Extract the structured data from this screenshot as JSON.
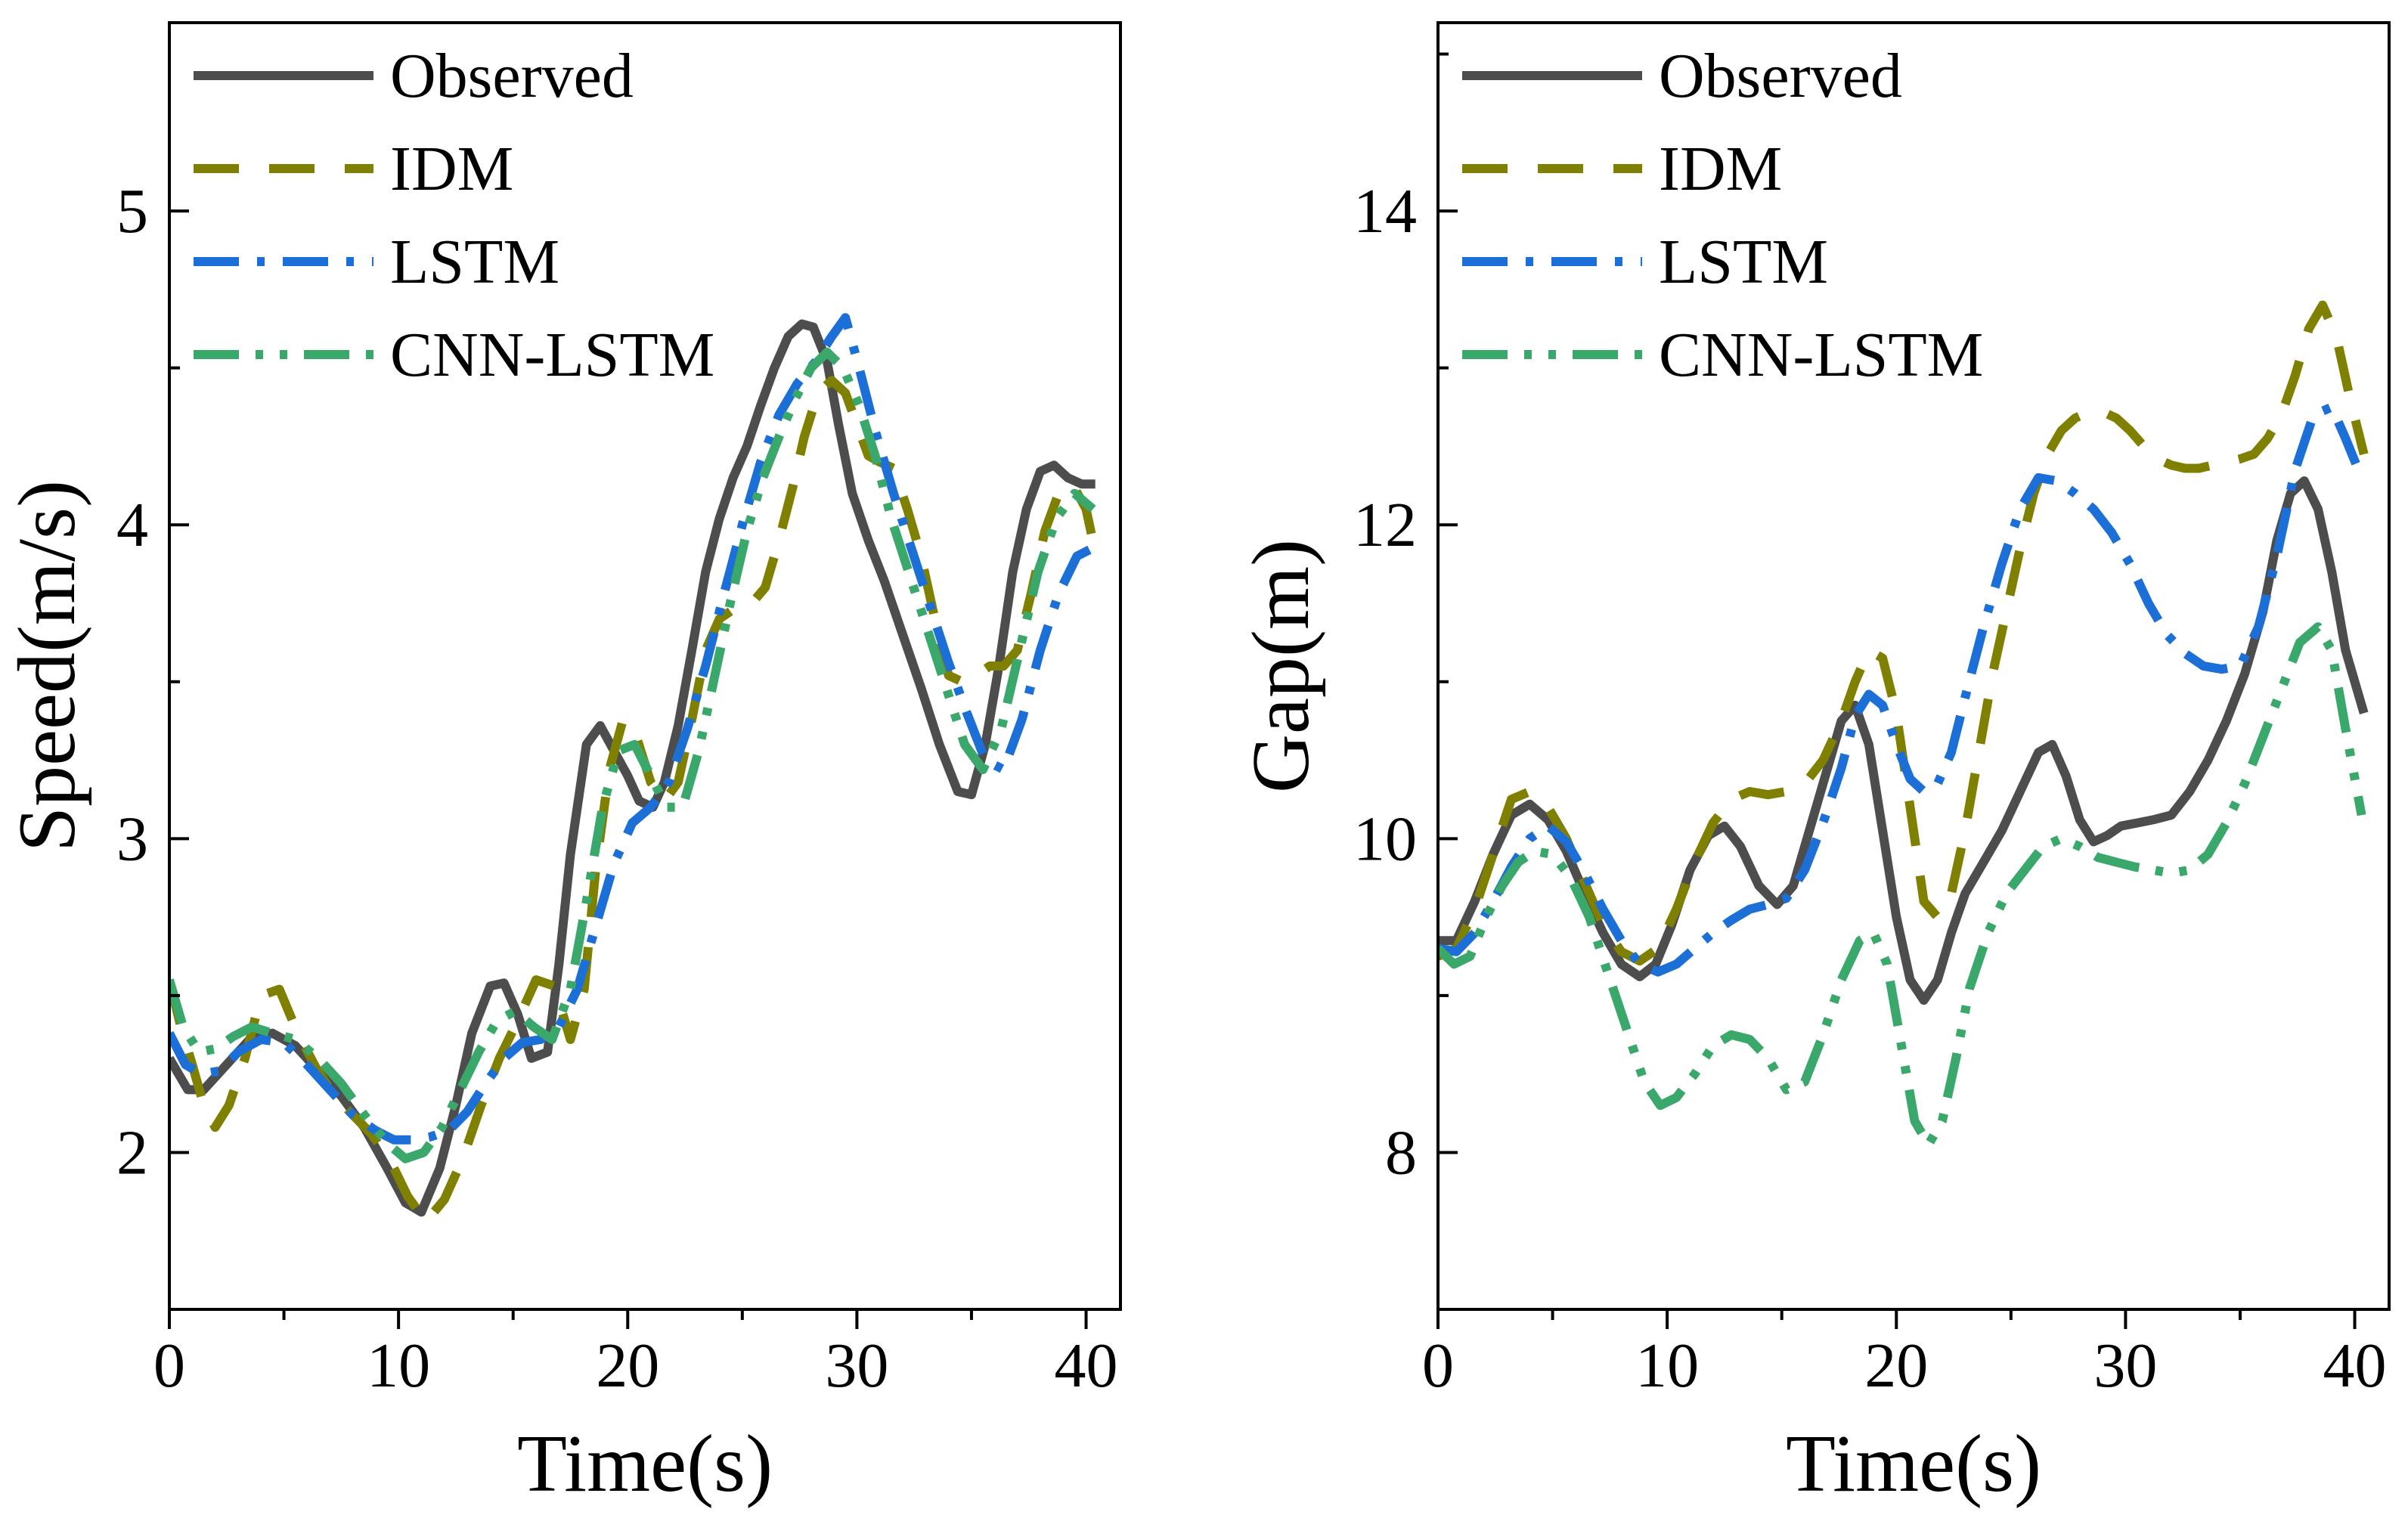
{
  "chart_data": [
    {
      "type": "line",
      "xlabel": "Time(s)",
      "ylabel": "Speed(m/s)",
      "xlim": [
        0,
        41.5
      ],
      "ylim": [
        1.5,
        5.6
      ],
      "xticks": [
        0,
        10,
        20,
        30,
        40
      ],
      "xminor": [
        5,
        15,
        25,
        35
      ],
      "yticks": [
        2,
        3,
        4,
        5
      ],
      "yminor": [
        1.5,
        2.5,
        3.5,
        4.5
      ],
      "legend_position": "top-left",
      "series": [
        {
          "name": "Observed",
          "style": "solid",
          "color": "#4d4d4d",
          "x": [
            0,
            0.8,
            1.5,
            2.5,
            3.5,
            4.5,
            5.5,
            6.5,
            7.5,
            8.5,
            9.5,
            10.3,
            11,
            11.8,
            12.5,
            13.2,
            14,
            14.6,
            15.2,
            15.8,
            16.5,
            17,
            17.5,
            18.2,
            18.8,
            19.4,
            20,
            20.5,
            21.1,
            21.6,
            22.2,
            22.8,
            23.4,
            24,
            24.6,
            25.2,
            25.8,
            26.4,
            27,
            27.6,
            28.1,
            28.7,
            29.2,
            29.8,
            30.5,
            31.2,
            32,
            32.8,
            33.6,
            34.4,
            35,
            35.6,
            36.2,
            36.8,
            37.4,
            38,
            38.6,
            39.2,
            39.8,
            40.4
          ],
          "y": [
            2.3,
            2.2,
            2.2,
            2.28,
            2.36,
            2.38,
            2.34,
            2.26,
            2.18,
            2.08,
            1.95,
            1.84,
            1.81,
            1.95,
            2.15,
            2.38,
            2.53,
            2.54,
            2.44,
            2.3,
            2.32,
            2.6,
            2.95,
            3.3,
            3.36,
            3.28,
            3.2,
            3.12,
            3.1,
            3.18,
            3.36,
            3.6,
            3.85,
            4.02,
            4.15,
            4.25,
            4.38,
            4.5,
            4.6,
            4.64,
            4.63,
            4.52,
            4.32,
            4.1,
            3.95,
            3.82,
            3.65,
            3.48,
            3.3,
            3.15,
            3.14,
            3.3,
            3.55,
            3.85,
            4.05,
            4.17,
            4.19,
            4.15,
            4.13,
            4.13
          ]
        },
        {
          "name": "IDM",
          "style": "dashed",
          "color": "#808000",
          "x": [
            0,
            0.5,
            1,
            1.5,
            2,
            2.6,
            3.3,
            4,
            4.8,
            5.6,
            6.4,
            7.2,
            8,
            8.8,
            9.6,
            10.4,
            11.2,
            12,
            12.8,
            13.6,
            14.4,
            15.2,
            16,
            16.8,
            17.5,
            18.1,
            18.6,
            19.2,
            19.8,
            20.4,
            21,
            21.6,
            22.2,
            22.8,
            23.4,
            24,
            24.6,
            25.3,
            26,
            26.6,
            27.2,
            27.7,
            28.3,
            28.9,
            29.5,
            30,
            30.5,
            31,
            31.6,
            32.2,
            32.8,
            33.4,
            34,
            34.6,
            35.2,
            35.8,
            36.4,
            37,
            37.6,
            38.2,
            38.8,
            39.4,
            40,
            40.5
          ],
          "y": [
            2.55,
            2.4,
            2.28,
            2.15,
            2.08,
            2.15,
            2.3,
            2.5,
            2.52,
            2.38,
            2.27,
            2.18,
            2.12,
            2.06,
            1.98,
            1.86,
            1.78,
            1.85,
            1.98,
            2.15,
            2.3,
            2.42,
            2.55,
            2.53,
            2.36,
            2.52,
            2.9,
            3.22,
            3.38,
            3.32,
            3.18,
            3.12,
            3.18,
            3.38,
            3.6,
            3.7,
            3.73,
            3.74,
            3.8,
            3.95,
            4.12,
            4.28,
            4.42,
            4.46,
            4.42,
            4.32,
            4.22,
            4.2,
            4.18,
            4.05,
            3.9,
            3.7,
            3.52,
            3.5,
            3.52,
            3.55,
            3.55,
            3.6,
            3.78,
            3.98,
            4.1,
            4.13,
            4.05,
            3.88
          ]
        },
        {
          "name": "LSTM",
          "style": "dashdot",
          "color": "#1c6fd6",
          "x": [
            0,
            0.7,
            1.4,
            2.2,
            3,
            4,
            5,
            6,
            7,
            8,
            9,
            9.8,
            10.6,
            11.4,
            12.2,
            13,
            13.8,
            14.6,
            15.4,
            16.2,
            17,
            17.8,
            18.6,
            19.4,
            20.2,
            21,
            21.8,
            22.6,
            23.4,
            24.2,
            25,
            25.8,
            26.6,
            27.4,
            28.2,
            28.9,
            29.5,
            30.1,
            30.8,
            31.6,
            32.4,
            33.2,
            34,
            34.8,
            35.6,
            36.4,
            37.2,
            38,
            38.8,
            39.6,
            40.4
          ],
          "y": [
            2.38,
            2.28,
            2.25,
            2.26,
            2.32,
            2.36,
            2.35,
            2.28,
            2.2,
            2.12,
            2.07,
            2.04,
            2.04,
            2.05,
            2.07,
            2.13,
            2.22,
            2.3,
            2.35,
            2.36,
            2.4,
            2.52,
            2.72,
            2.92,
            3.05,
            3.1,
            3.18,
            3.35,
            3.55,
            3.78,
            4.0,
            4.2,
            4.35,
            4.45,
            4.52,
            4.6,
            4.66,
            4.5,
            4.3,
            4.1,
            3.92,
            3.74,
            3.56,
            3.4,
            3.25,
            3.22,
            3.38,
            3.6,
            3.78,
            3.9,
            3.93
          ]
        },
        {
          "name": "CNN-LSTM",
          "style": "dashdotdot",
          "color": "#3aa86a",
          "x": [
            0,
            0.6,
            1.3,
            2,
            2.8,
            3.6,
            4.5,
            5.5,
            6.5,
            7.5,
            8.5,
            9.5,
            10.3,
            11.1,
            11.9,
            12.7,
            13.5,
            14.3,
            15.1,
            15.9,
            16.7,
            17.5,
            18.2,
            18.9,
            19.6,
            20.3,
            21,
            21.7,
            22.4,
            23.1,
            23.8,
            24.5,
            25.2,
            25.9,
            26.6,
            27.3,
            28,
            28.7,
            29.4,
            30.1,
            30.8,
            31.5,
            32.3,
            33.1,
            33.9,
            34.7,
            35.5,
            36.3,
            37.1,
            37.9,
            38.7,
            39.5,
            40.3
          ],
          "y": [
            2.55,
            2.4,
            2.32,
            2.33,
            2.37,
            2.4,
            2.38,
            2.36,
            2.3,
            2.22,
            2.12,
            2.03,
            1.98,
            2.0,
            2.08,
            2.2,
            2.32,
            2.42,
            2.45,
            2.4,
            2.36,
            2.52,
            2.8,
            3.1,
            3.28,
            3.3,
            3.2,
            3.1,
            3.1,
            3.28,
            3.52,
            3.76,
            3.98,
            4.15,
            4.28,
            4.4,
            4.5,
            4.55,
            4.5,
            4.38,
            4.22,
            4.02,
            3.84,
            3.66,
            3.48,
            3.3,
            3.22,
            3.35,
            3.6,
            3.85,
            4.02,
            4.1,
            4.05
          ]
        }
      ]
    },
    {
      "type": "line",
      "xlabel": "Time(s)",
      "ylabel": "Gap(m)",
      "xlim": [
        0,
        41.5
      ],
      "ylim": [
        7,
        15.2
      ],
      "xticks": [
        0,
        10,
        20,
        30,
        40
      ],
      "xminor": [
        5,
        15,
        25,
        35
      ],
      "yticks": [
        8,
        10,
        12,
        14
      ],
      "yminor": [
        7,
        9,
        11,
        13,
        15
      ],
      "legend_position": "top-left",
      "series": [
        {
          "name": "Observed",
          "style": "solid",
          "color": "#4d4d4d",
          "x": [
            0,
            0.8,
            1.6,
            2.4,
            3.2,
            4,
            4.8,
            5.6,
            6.4,
            7.2,
            8,
            8.8,
            9.5,
            10.2,
            11,
            11.8,
            12.5,
            13.2,
            14,
            14.8,
            15.5,
            16.2,
            17,
            17.6,
            18.2,
            18.8,
            19.4,
            20,
            20.6,
            21.2,
            21.8,
            22.4,
            23,
            23.8,
            24.6,
            25.4,
            26.2,
            26.8,
            27.4,
            28,
            28.6,
            29.2,
            29.8,
            30.5,
            31.2,
            32,
            32.8,
            33.6,
            34.4,
            35.2,
            36,
            36.6,
            37.2,
            37.8,
            38.4,
            39,
            39.6,
            40.4
          ],
          "y": [
            9.35,
            9.35,
            9.6,
            9.9,
            10.15,
            10.22,
            10.12,
            9.92,
            9.65,
            9.4,
            9.2,
            9.12,
            9.2,
            9.45,
            9.8,
            10.02,
            10.08,
            9.95,
            9.7,
            9.58,
            9.7,
            10.05,
            10.45,
            10.75,
            10.85,
            10.6,
            10.05,
            9.5,
            9.1,
            8.97,
            9.1,
            9.4,
            9.65,
            9.85,
            10.05,
            10.3,
            10.55,
            10.6,
            10.4,
            10.12,
            9.98,
            10.02,
            10.08,
            10.1,
            10.12,
            10.15,
            10.3,
            10.5,
            10.75,
            11.05,
            11.45,
            11.9,
            12.2,
            12.28,
            12.1,
            11.7,
            11.2,
            10.8
          ]
        },
        {
          "name": "IDM",
          "style": "dashed",
          "color": "#808000",
          "x": [
            0,
            0.8,
            1.6,
            2.4,
            3.2,
            4,
            4.8,
            5.6,
            6.4,
            7.2,
            8,
            8.8,
            9.6,
            10.4,
            11.2,
            12,
            12.8,
            13.6,
            14.4,
            15.2,
            16,
            16.8,
            17.6,
            18.2,
            18.8,
            19.4,
            20,
            20.6,
            21.2,
            21.8,
            22.4,
            23,
            23.6,
            24.2,
            24.8,
            25.4,
            26,
            26.6,
            27.2,
            27.8,
            28.4,
            29,
            29.6,
            30.2,
            30.8,
            31.4,
            32,
            32.6,
            33.2,
            33.8,
            34.4,
            35,
            35.6,
            36.2,
            36.8,
            37.4,
            38,
            38.6,
            39.2,
            39.8,
            40.4
          ],
          "y": [
            9.25,
            9.3,
            9.55,
            9.9,
            10.25,
            10.3,
            10.2,
            10.0,
            9.72,
            9.45,
            9.28,
            9.22,
            9.3,
            9.55,
            9.85,
            10.1,
            10.25,
            10.3,
            10.28,
            10.3,
            10.35,
            10.5,
            10.75,
            11.0,
            11.2,
            11.15,
            10.8,
            10.2,
            9.6,
            9.5,
            9.65,
            10.05,
            10.55,
            11.05,
            11.45,
            11.85,
            12.2,
            12.45,
            12.6,
            12.68,
            12.72,
            12.72,
            12.68,
            12.6,
            12.5,
            12.42,
            12.38,
            12.36,
            12.36,
            12.38,
            12.4,
            12.42,
            12.45,
            12.55,
            12.7,
            12.95,
            13.25,
            13.4,
            13.2,
            12.8,
            12.45
          ]
        },
        {
          "name": "LSTM",
          "style": "dashdot",
          "color": "#1c6fd6",
          "x": [
            0,
            0.8,
            1.6,
            2.4,
            3.2,
            4,
            4.8,
            5.6,
            6.4,
            7.2,
            8,
            8.8,
            9.6,
            10.4,
            11.2,
            12,
            12.8,
            13.6,
            14.4,
            15.2,
            16,
            16.8,
            17.6,
            18.2,
            18.8,
            19.4,
            20,
            20.6,
            21.2,
            21.8,
            22.4,
            23,
            23.8,
            24.6,
            25.4,
            26.2,
            27,
            27.8,
            28.6,
            29.4,
            30.2,
            31,
            31.8,
            32.6,
            33.4,
            34.2,
            35,
            35.8,
            36.6,
            37.4,
            38.2,
            39,
            39.6,
            40.3
          ],
          "y": [
            9.3,
            9.28,
            9.4,
            9.6,
            9.82,
            10.0,
            10.08,
            9.98,
            9.78,
            9.55,
            9.35,
            9.2,
            9.15,
            9.2,
            9.3,
            9.4,
            9.48,
            9.55,
            9.58,
            9.62,
            9.8,
            10.1,
            10.45,
            10.78,
            10.92,
            10.85,
            10.6,
            10.38,
            10.3,
            10.35,
            10.55,
            10.9,
            11.35,
            11.75,
            12.1,
            12.3,
            12.28,
            12.2,
            12.1,
            11.95,
            11.75,
            11.5,
            11.3,
            11.18,
            11.1,
            11.08,
            11.1,
            11.35,
            11.8,
            12.35,
            12.7,
            12.75,
            12.55,
            12.3
          ]
        },
        {
          "name": "CNN-LSTM",
          "style": "dashdotdot",
          "color": "#3aa86a",
          "x": [
            0,
            0.7,
            1.4,
            2.1,
            2.8,
            3.5,
            4.2,
            5,
            5.8,
            6.6,
            7.4,
            8.2,
            9,
            9.7,
            10.4,
            11.2,
            12,
            12.8,
            13.6,
            14.4,
            15.2,
            16,
            16.8,
            17.6,
            18.4,
            19,
            19.6,
            20.2,
            20.8,
            21.4,
            22,
            22.6,
            23.2,
            24,
            24.8,
            25.6,
            26.4,
            27.2,
            28,
            28.8,
            29.6,
            30.4,
            31.2,
            32,
            32.8,
            33.6,
            34.4,
            35.2,
            36,
            36.8,
            37.6,
            38.4,
            39,
            39.6,
            40.3
          ],
          "y": [
            9.3,
            9.2,
            9.25,
            9.5,
            9.7,
            9.85,
            9.92,
            9.9,
            9.75,
            9.5,
            9.15,
            8.8,
            8.45,
            8.3,
            8.35,
            8.5,
            8.68,
            8.75,
            8.72,
            8.6,
            8.4,
            8.45,
            8.75,
            9.1,
            9.35,
            9.4,
            9.2,
            8.7,
            8.2,
            8.05,
            8.2,
            8.6,
            9.05,
            9.4,
            9.65,
            9.8,
            9.95,
            10.0,
            9.95,
            9.88,
            9.85,
            9.82,
            9.8,
            9.78,
            9.8,
            9.9,
            10.1,
            10.35,
            10.65,
            10.95,
            11.25,
            11.35,
            11.2,
            10.7,
            10.15
          ]
        }
      ]
    }
  ]
}
